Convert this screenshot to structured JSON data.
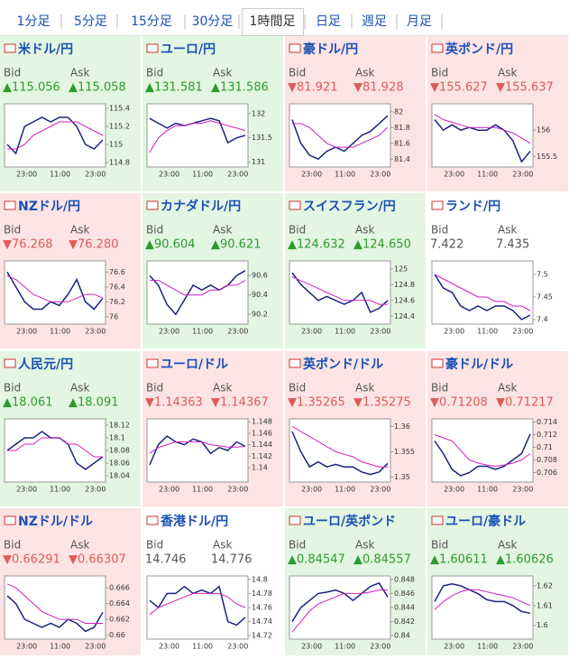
{
  "tabs": [
    "1分足",
    "5分足",
    "15分足",
    "30分足",
    "1時間足",
    "日足",
    "週足",
    "月足"
  ],
  "active_tab": 4,
  "labels": {
    "bid": "Bid",
    "ask": "Ask"
  },
  "panels": [
    {
      "name": "米ドル/円",
      "tone": "up",
      "bid": "▲115.056",
      "ask": "▲115.058",
      "chart": {
        "type": "line",
        "ylim": [
          114.75,
          115.45
        ],
        "yticks": [
          114.8,
          115,
          115.2,
          115.4
        ],
        "xlabels": [
          "23:00",
          "11:00",
          "23:00"
        ],
        "series": [
          {
            "color": "#1a237e",
            "values": [
              115.0,
              114.9,
              115.2,
              115.25,
              115.3,
              115.25,
              115.3,
              115.3,
              115.2,
              115.0,
              114.95,
              115.05
            ]
          },
          {
            "color": "#d020c0",
            "values": [
              114.95,
              114.95,
              115.0,
              115.1,
              115.15,
              115.2,
              115.25,
              115.25,
              115.25,
              115.2,
              115.15,
              115.1
            ]
          }
        ]
      }
    },
    {
      "name": "ユーロ/円",
      "tone": "up",
      "bid": "▲131.581",
      "ask": "▲131.586",
      "chart": {
        "type": "line",
        "ylim": [
          130.9,
          132.2
        ],
        "yticks": [
          131,
          131.5,
          132
        ],
        "xlabels": [
          "23:00",
          "11:00",
          "23:00"
        ],
        "series": [
          {
            "color": "#1a237e",
            "values": [
              131.9,
              131.8,
              131.7,
              131.8,
              131.75,
              131.8,
              131.85,
              131.9,
              131.85,
              131.4,
              131.5,
              131.55
            ]
          },
          {
            "color": "#d020c0",
            "values": [
              131.2,
              131.5,
              131.65,
              131.75,
              131.75,
              131.8,
              131.8,
              131.85,
              131.8,
              131.75,
              131.7,
              131.65
            ]
          }
        ]
      }
    },
    {
      "name": "豪ドル/円",
      "tone": "down",
      "bid": "▼81.921",
      "ask": "▼81.928",
      "chart": {
        "type": "line",
        "ylim": [
          81.3,
          82.1
        ],
        "yticks": [
          81.4,
          81.6,
          81.8,
          82
        ],
        "xlabels": [
          "23:00",
          "11:00",
          "23:00"
        ],
        "series": [
          {
            "color": "#1a237e",
            "values": [
              81.9,
              81.6,
              81.45,
              81.4,
              81.5,
              81.55,
              81.5,
              81.6,
              81.7,
              81.75,
              81.85,
              81.95
            ]
          },
          {
            "color": "#d020c0",
            "values": [
              81.85,
              81.85,
              81.8,
              81.7,
              81.6,
              81.55,
              81.55,
              81.55,
              81.6,
              81.65,
              81.7,
              81.8
            ]
          }
        ]
      }
    },
    {
      "name": "英ポンド/円",
      "tone": "down",
      "bid": "▼155.627",
      "ask": "▼155.637",
      "chart": {
        "type": "line",
        "ylim": [
          155.3,
          156.5
        ],
        "yticks": [
          155.5,
          156
        ],
        "xlabels": [
          "23:00",
          "11:00",
          "23:00"
        ],
        "series": [
          {
            "color": "#1a237e",
            "values": [
              156.2,
              156.0,
              156.1,
              156.0,
              156.05,
              156.0,
              156.0,
              156.1,
              156.0,
              155.8,
              155.4,
              155.6
            ]
          },
          {
            "color": "#d020c0",
            "values": [
              156.3,
              156.2,
              156.15,
              156.1,
              156.05,
              156.05,
              156.05,
              156.05,
              156.0,
              155.95,
              155.85,
              155.75
            ]
          }
        ]
      }
    },
    {
      "name": "NZドル/円",
      "tone": "down",
      "bid": "▼76.268",
      "ask": "▼76.280",
      "chart": {
        "type": "line",
        "ylim": [
          75.9,
          76.75
        ],
        "yticks": [
          76,
          76.2,
          76.4,
          76.6
        ],
        "xlabels": [
          "23:00",
          "11:00",
          "23:00"
        ],
        "series": [
          {
            "color": "#1a237e",
            "values": [
              76.6,
              76.4,
              76.2,
              76.1,
              76.1,
              76.2,
              76.15,
              76.3,
              76.5,
              76.2,
              76.1,
              76.25
            ]
          },
          {
            "color": "#d020c0",
            "values": [
              76.55,
              76.5,
              76.4,
              76.3,
              76.25,
              76.2,
              76.2,
              76.2,
              76.25,
              76.3,
              76.3,
              76.25
            ]
          }
        ]
      }
    },
    {
      "name": "カナダドル/円",
      "tone": "up",
      "bid": "▲90.604",
      "ask": "▲90.621",
      "chart": {
        "type": "line",
        "ylim": [
          90.1,
          90.75
        ],
        "yticks": [
          90.2,
          90.4,
          90.6
        ],
        "xlabels": [
          "23:00",
          "11:00",
          "23:00"
        ],
        "series": [
          {
            "color": "#1a237e",
            "values": [
              90.6,
              90.5,
              90.3,
              90.2,
              90.35,
              90.5,
              90.45,
              90.5,
              90.45,
              90.5,
              90.6,
              90.65
            ]
          },
          {
            "color": "#d020c0",
            "values": [
              90.55,
              90.55,
              90.5,
              90.45,
              90.4,
              90.4,
              90.4,
              90.45,
              90.45,
              90.5,
              90.5,
              90.55
            ]
          }
        ]
      }
    },
    {
      "name": "スイスフラン/円",
      "tone": "up",
      "bid": "▲124.632",
      "ask": "▲124.650",
      "chart": {
        "type": "line",
        "ylim": [
          124.3,
          125.1
        ],
        "yticks": [
          124.4,
          124.6,
          124.8,
          125
        ],
        "xlabels": [
          "23:00",
          "11:00",
          "23:00"
        ],
        "series": [
          {
            "color": "#1a237e",
            "values": [
              124.95,
              124.8,
              124.7,
              124.6,
              124.65,
              124.6,
              124.55,
              124.6,
              124.7,
              124.45,
              124.5,
              124.6
            ]
          },
          {
            "color": "#d020c0",
            "values": [
              124.9,
              124.85,
              124.8,
              124.75,
              124.7,
              124.65,
              124.6,
              124.6,
              124.6,
              124.6,
              124.55,
              124.55
            ]
          }
        ]
      }
    },
    {
      "name": "ランド/円",
      "tone": "flat",
      "bid": "7.422",
      "ask": "7.435",
      "chart": {
        "type": "line",
        "ylim": [
          7.39,
          7.53
        ],
        "yticks": [
          7.4,
          7.45,
          7.5
        ],
        "xlabels": [
          "23:00",
          "11:00",
          "23:00"
        ],
        "series": [
          {
            "color": "#1a237e",
            "values": [
              7.5,
              7.47,
              7.46,
              7.43,
              7.42,
              7.43,
              7.42,
              7.43,
              7.43,
              7.42,
              7.4,
              7.41
            ]
          },
          {
            "color": "#d020c0",
            "values": [
              7.5,
              7.49,
              7.48,
              7.47,
              7.46,
              7.45,
              7.45,
              7.44,
              7.44,
              7.43,
              7.43,
              7.42
            ]
          }
        ]
      }
    },
    {
      "name": "人民元/円",
      "tone": "up",
      "bid": "▲18.061",
      "ask": "▲18.091",
      "chart": {
        "type": "line",
        "ylim": [
          18.03,
          18.13
        ],
        "yticks": [
          18.04,
          18.06,
          18.08,
          18.1,
          18.12
        ],
        "xlabels": [
          "23:00",
          "11:00",
          "23:00"
        ],
        "series": [
          {
            "color": "#1a237e",
            "values": [
              18.08,
              18.09,
              18.1,
              18.1,
              18.11,
              18.1,
              18.1,
              18.09,
              18.06,
              18.05,
              18.06,
              18.07
            ]
          },
          {
            "color": "#d020c0",
            "values": [
              18.08,
              18.08,
              18.09,
              18.09,
              18.1,
              18.1,
              18.1,
              18.09,
              18.09,
              18.08,
              18.07,
              18.07
            ]
          }
        ]
      }
    },
    {
      "name": "ユーロ/ドル",
      "tone": "down",
      "bid": "▼1.14363",
      "ask": "▼1.14367",
      "chart": {
        "type": "line",
        "ylim": [
          1.1375,
          1.1485
        ],
        "yticks": [
          1.14,
          1.142,
          1.144,
          1.146,
          1.148
        ],
        "xlabels": [
          "23:00",
          "11:00",
          "23:00"
        ],
        "series": [
          {
            "color": "#1a237e",
            "values": [
              1.1405,
              1.144,
              1.1455,
              1.1445,
              1.144,
              1.145,
              1.1445,
              1.1425,
              1.1435,
              1.143,
              1.1445,
              1.1437
            ]
          },
          {
            "color": "#d020c0",
            "values": [
              1.1425,
              1.1435,
              1.144,
              1.1445,
              1.1445,
              1.1445,
              1.1445,
              1.144,
              1.1438,
              1.1436,
              1.1436,
              1.1437
            ]
          }
        ]
      }
    },
    {
      "name": "英ポンド/ドル",
      "tone": "down",
      "bid": "▼1.35265",
      "ask": "▼1.35275",
      "chart": {
        "type": "line",
        "ylim": [
          1.349,
          1.3615
        ],
        "yticks": [
          1.35,
          1.355,
          1.36
        ],
        "xlabels": [
          "23:00",
          "11:00",
          "23:00"
        ],
        "series": [
          {
            "color": "#1a237e",
            "values": [
              1.359,
              1.355,
              1.352,
              1.353,
              1.352,
              1.3525,
              1.352,
              1.352,
              1.351,
              1.3505,
              1.351,
              1.3527
            ]
          },
          {
            "color": "#d020c0",
            "values": [
              1.36,
              1.359,
              1.358,
              1.357,
              1.356,
              1.355,
              1.3545,
              1.354,
              1.353,
              1.3525,
              1.352,
              1.352
            ]
          }
        ]
      }
    },
    {
      "name": "豪ドル/ドル",
      "tone": "down",
      "bid": "▼0.71208",
      "ask": "▼0.71217",
      "chart": {
        "type": "line",
        "ylim": [
          0.7045,
          0.7145
        ],
        "yticks": [
          0.706,
          0.708,
          0.71,
          0.712,
          0.714
        ],
        "xlabels": [
          "23:00",
          "11:00",
          "23:00"
        ],
        "series": [
          {
            "color": "#1a237e",
            "values": [
              0.711,
              0.709,
              0.7065,
              0.7055,
              0.706,
              0.707,
              0.707,
              0.7065,
              0.707,
              0.708,
              0.709,
              0.7121
            ]
          },
          {
            "color": "#d020c0",
            "values": [
              0.712,
              0.7115,
              0.711,
              0.7095,
              0.708,
              0.7075,
              0.7072,
              0.707,
              0.7072,
              0.7075,
              0.708,
              0.709
            ]
          }
        ]
      }
    },
    {
      "name": "NZドル/ドル",
      "tone": "down",
      "bid": "▼0.66291",
      "ask": "▼0.66307",
      "chart": {
        "type": "line",
        "ylim": [
          0.6595,
          0.6675
        ],
        "yticks": [
          0.66,
          0.662,
          0.664,
          0.666
        ],
        "xlabels": [
          "23:00",
          "11:00",
          "23:00"
        ],
        "series": [
          {
            "color": "#1a237e",
            "values": [
              0.665,
              0.664,
              0.662,
              0.6615,
              0.661,
              0.6615,
              0.661,
              0.662,
              0.6615,
              0.6605,
              0.661,
              0.6629
            ]
          },
          {
            "color": "#d020c0",
            "values": [
              0.6665,
              0.666,
              0.665,
              0.664,
              0.663,
              0.6625,
              0.662,
              0.662,
              0.662,
              0.6615,
              0.6615,
              0.6615
            ]
          }
        ]
      }
    },
    {
      "name": "香港ドル/円",
      "tone": "flat",
      "bid": "14.746",
      "ask": "14.776",
      "chart": {
        "type": "line",
        "ylim": [
          14.715,
          14.805
        ],
        "yticks": [
          14.72,
          14.74,
          14.76,
          14.78,
          14.8
        ],
        "xlabels": [
          "23:00",
          "11:00",
          "23:00"
        ],
        "series": [
          {
            "color": "#1a237e",
            "values": [
              14.77,
              14.76,
              14.78,
              14.78,
              14.79,
              14.78,
              14.785,
              14.78,
              14.79,
              14.74,
              14.735,
              14.746
            ]
          },
          {
            "color": "#d020c0",
            "values": [
              14.75,
              14.76,
              14.765,
              14.77,
              14.775,
              14.78,
              14.78,
              14.78,
              14.78,
              14.775,
              14.765,
              14.76
            ]
          }
        ]
      }
    },
    {
      "name": "ユーロ/英ポンド",
      "tone": "up",
      "bid": "▲0.84547",
      "ask": "▲0.84557",
      "chart": {
        "type": "line",
        "ylim": [
          0.8395,
          0.8485
        ],
        "yticks": [
          0.84,
          0.842,
          0.844,
          0.846,
          0.848
        ],
        "xlabels": [
          "23:00",
          "11:00",
          "23:00"
        ],
        "series": [
          {
            "color": "#1a237e",
            "values": [
              0.842,
              0.844,
              0.845,
              0.846,
              0.8462,
              0.8465,
              0.846,
              0.845,
              0.846,
              0.847,
              0.8475,
              0.8455
            ]
          },
          {
            "color": "#d020c0",
            "values": [
              0.8405,
              0.842,
              0.8435,
              0.8445,
              0.845,
              0.8455,
              0.846,
              0.846,
              0.846,
              0.8462,
              0.8465,
              0.8465
            ]
          }
        ]
      }
    },
    {
      "name": "ユーロ/豪ドル",
      "tone": "up",
      "bid": "▲1.60611",
      "ask": "▲1.60626",
      "chart": {
        "type": "line",
        "ylim": [
          1.593,
          1.625
        ],
        "yticks": [
          1.6,
          1.61,
          1.62
        ],
        "xlabels": [
          "23:00",
          "11:00",
          "23:00"
        ],
        "series": [
          {
            "color": "#1a237e",
            "values": [
              1.612,
              1.62,
              1.621,
              1.62,
              1.618,
              1.616,
              1.613,
              1.612,
              1.612,
              1.61,
              1.607,
              1.6061
            ]
          },
          {
            "color": "#d020c0",
            "values": [
              1.608,
              1.612,
              1.615,
              1.617,
              1.618,
              1.618,
              1.617,
              1.616,
              1.615,
              1.614,
              1.612,
              1.61
            ]
          }
        ]
      }
    }
  ]
}
